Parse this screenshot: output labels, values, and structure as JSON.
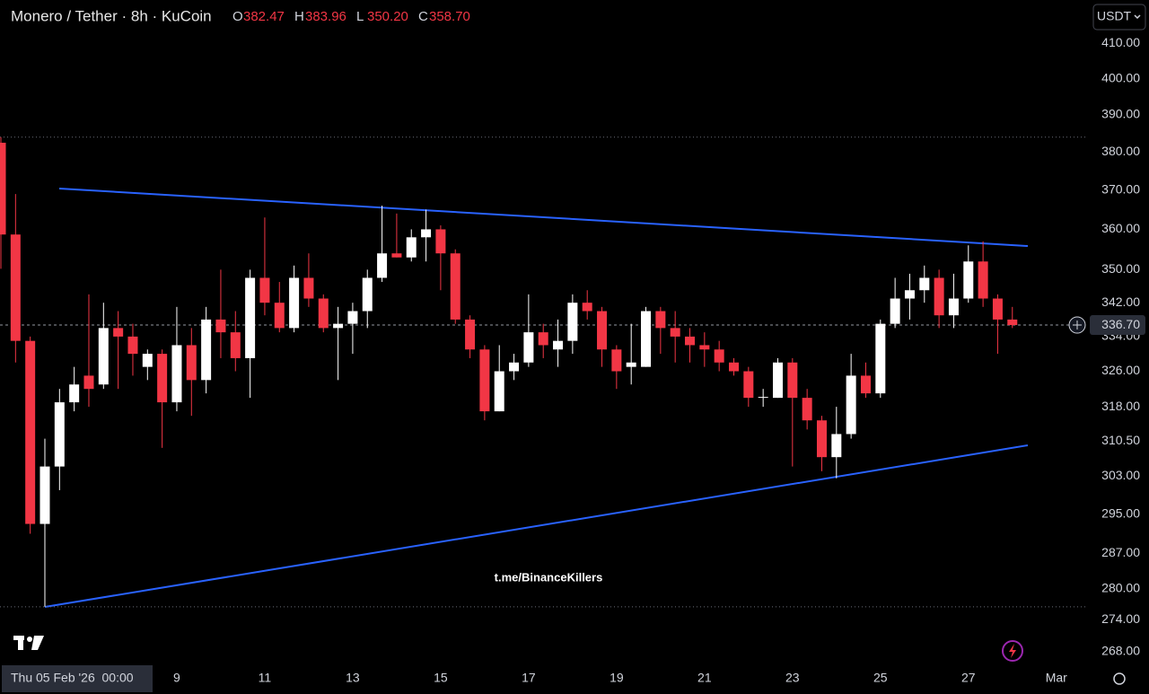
{
  "chart_data": {
    "type": "candlestick",
    "title": "Monero / Tether · 8h · KuCoin",
    "ohlc_legend": {
      "names": [
        "O",
        "H",
        "L",
        "C"
      ],
      "values": [
        382.47,
        383.96,
        350.2,
        358.7
      ],
      "value_labels": [
        "382.47",
        "383.96",
        "350.20",
        "358.70"
      ]
    },
    "currency": "USDT",
    "watermark": "t.me/BinanceKillers",
    "categories": [
      "Thu 05 Feb '26  00:00",
      null,
      null,
      null,
      null,
      null,
      null,
      null,
      null,
      null,
      null,
      null,
      "9",
      null,
      null,
      null,
      null,
      null,
      "11",
      null,
      null,
      null,
      null,
      null,
      "13",
      null,
      null,
      null,
      null,
      null,
      "15",
      null,
      null,
      null,
      null,
      null,
      "17",
      null,
      null,
      null,
      null,
      null,
      "19",
      null,
      null,
      null,
      null,
      null,
      "21",
      null,
      null,
      null,
      null,
      null,
      "23",
      null,
      null,
      null,
      null,
      null,
      "25",
      null,
      null,
      null,
      null,
      null,
      "27",
      null,
      null,
      null,
      null,
      null,
      "Mar"
    ],
    "open": [
      382.47,
      358.7,
      333,
      293,
      305,
      319,
      325,
      323,
      336,
      334,
      327,
      330,
      319,
      332,
      324,
      338,
      335,
      329,
      348,
      342,
      336,
      348,
      343,
      336,
      337,
      340,
      348,
      354,
      353,
      358,
      360,
      354,
      338,
      331,
      317,
      326,
      328,
      335,
      331,
      333,
      342,
      340,
      331,
      327,
      327,
      340,
      336,
      334,
      332,
      331,
      328,
      326,
      320,
      320,
      328,
      320,
      315,
      307,
      312,
      325,
      321,
      337,
      343,
      345,
      348,
      339,
      343,
      352,
      343,
      338,
      null,
      null,
      null
    ],
    "high": [
      383.96,
      369,
      334,
      311,
      322,
      327,
      344,
      342,
      340,
      337,
      331,
      331,
      341,
      336,
      341,
      350,
      340,
      350,
      363,
      347,
      351,
      354,
      344,
      341,
      342,
      350,
      366,
      364,
      360,
      365,
      361,
      355,
      339,
      332,
      332,
      330,
      344,
      337,
      338,
      344,
      345,
      341,
      332,
      337,
      341,
      341,
      340,
      336,
      335,
      333,
      329,
      327,
      322,
      329,
      329,
      322,
      316,
      318,
      330,
      328,
      338,
      348,
      349,
      351,
      350,
      349,
      356,
      357,
      344,
      341,
      null,
      null,
      null
    ],
    "low": [
      350.2,
      328,
      291,
      276.5,
      300,
      317,
      318,
      322,
      322,
      325,
      324,
      309,
      317,
      316,
      321,
      329,
      326,
      320,
      339,
      335,
      335,
      341,
      335,
      324,
      330,
      336,
      347,
      353,
      352,
      352,
      345,
      337,
      329,
      315,
      317,
      324,
      327,
      329,
      327,
      330,
      338,
      327,
      322,
      323,
      327,
      330,
      328,
      328,
      327,
      326,
      325,
      318,
      318,
      320,
      305,
      313,
      304,
      302.5,
      311,
      320,
      320,
      336,
      338,
      342,
      336,
      336,
      342,
      341,
      330,
      336,
      null,
      null,
      null
    ],
    "close": [
      358.7,
      333,
      293,
      305,
      319,
      323,
      322,
      336,
      334,
      330,
      330,
      319,
      332,
      324,
      338,
      335,
      329,
      348,
      342,
      336,
      348,
      343,
      336,
      337,
      340,
      348,
      354,
      353,
      358,
      360,
      354,
      338,
      331,
      317,
      326,
      328,
      335,
      332,
      333,
      342,
      340,
      331,
      326,
      328,
      340,
      336,
      334,
      332,
      331,
      328,
      326,
      320,
      320.2,
      328,
      320,
      315,
      307,
      312,
      325,
      321,
      337,
      343,
      345,
      348,
      339,
      343,
      352,
      343,
      338,
      336.7,
      null,
      null,
      null
    ],
    "up_color": "#ffffff",
    "down_color": "#f23645",
    "last_price": {
      "value": 336.7,
      "label": "336.70"
    },
    "log_scale": true,
    "grid": false,
    "ylim": [
      265.6,
      422.6
    ],
    "yticks": [
      {
        "value": 410,
        "label": "410.00"
      },
      {
        "value": 400,
        "label": "400.00"
      },
      {
        "value": 390,
        "label": "390.00"
      },
      {
        "value": 380,
        "label": "380.00"
      },
      {
        "value": 370,
        "label": "370.00"
      },
      {
        "value": 360,
        "label": "360.00"
      },
      {
        "value": 350,
        "label": "350.00"
      },
      {
        "value": 342,
        "label": "342.00"
      },
      {
        "value": 334,
        "label": "334.00"
      },
      {
        "value": 326,
        "label": "326.00"
      },
      {
        "value": 318,
        "label": "318.00"
      },
      {
        "value": 310.5,
        "label": "310.50"
      },
      {
        "value": 303,
        "label": "303.00"
      },
      {
        "value": 295,
        "label": "295.00"
      },
      {
        "value": 287,
        "label": "287.00"
      },
      {
        "value": 280,
        "label": "280.00"
      },
      {
        "value": 274,
        "label": "274.00"
      },
      {
        "value": 268,
        "label": "268.00"
      }
    ]
  }
}
